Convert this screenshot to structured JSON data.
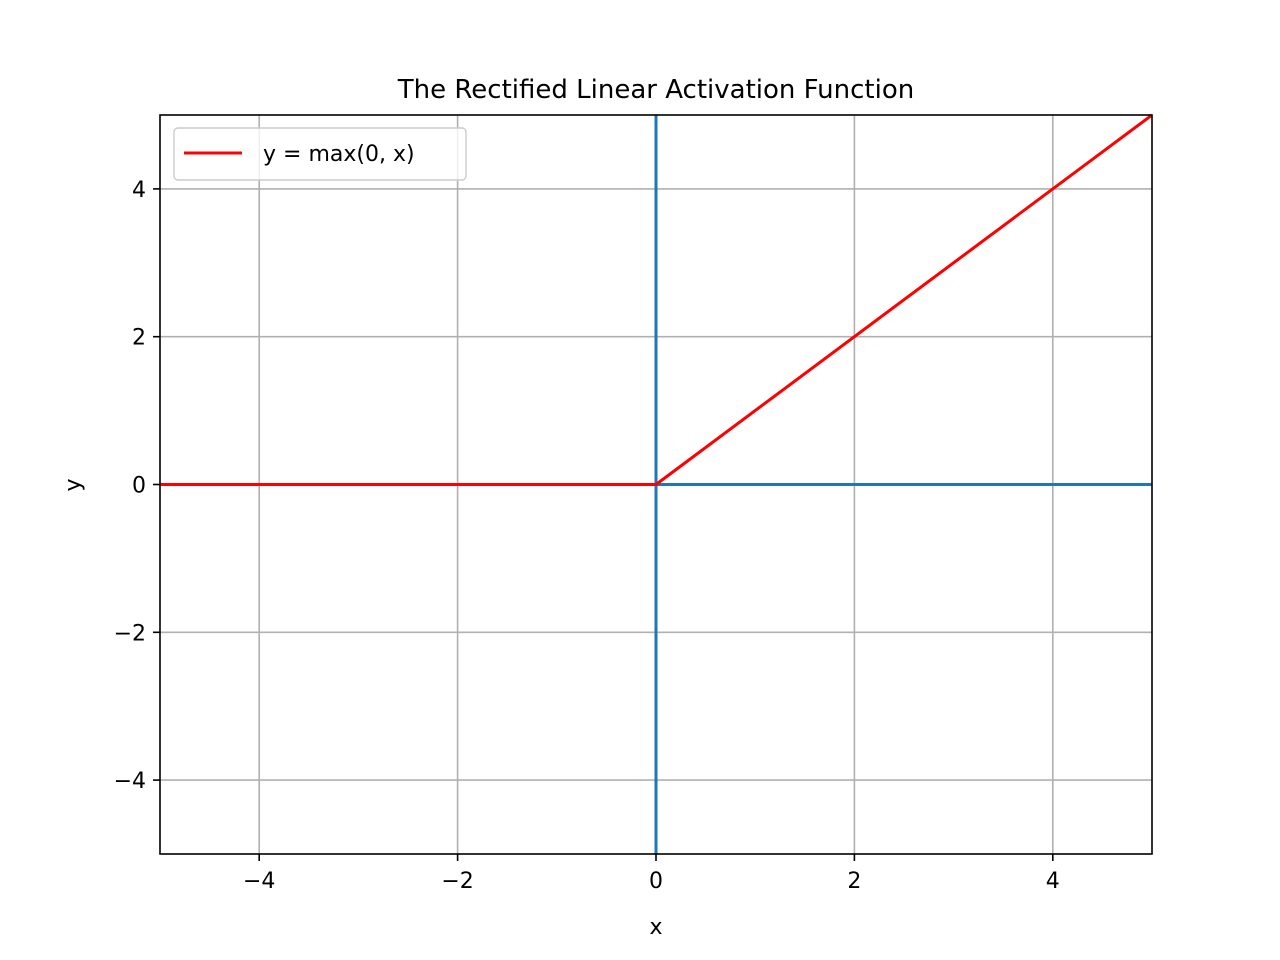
{
  "chart_data": {
    "type": "line",
    "title": "The Rectified Linear Activation Function",
    "xlabel": "x",
    "ylabel": "y",
    "xlim": [
      -5,
      5
    ],
    "ylim": [
      -5,
      5
    ],
    "grid": true,
    "legend_placement": "top-left",
    "x_ticks": [
      -4,
      -2,
      0,
      2,
      4
    ],
    "y_ticks": [
      -4,
      -2,
      0,
      2,
      4
    ],
    "x_tick_labels": [
      "−4",
      "−2",
      "0",
      "2",
      "4"
    ],
    "y_tick_labels": [
      "−4",
      "−2",
      "0",
      "2",
      "4"
    ],
    "series": [
      {
        "name": "y = max(0, x)",
        "color": "#ff0000",
        "points": [
          [
            -5,
            0
          ],
          [
            0,
            0
          ],
          [
            5,
            5
          ]
        ]
      }
    ],
    "reference_lines": [
      {
        "orientation": "vertical",
        "value": 0,
        "color": "#1f77b4"
      },
      {
        "orientation": "horizontal",
        "value": 0,
        "color": "#1f77b4"
      }
    ],
    "colors": {
      "grid": "#b0b0b0",
      "axes": "#000000",
      "legend_border": "#cccccc"
    }
  }
}
